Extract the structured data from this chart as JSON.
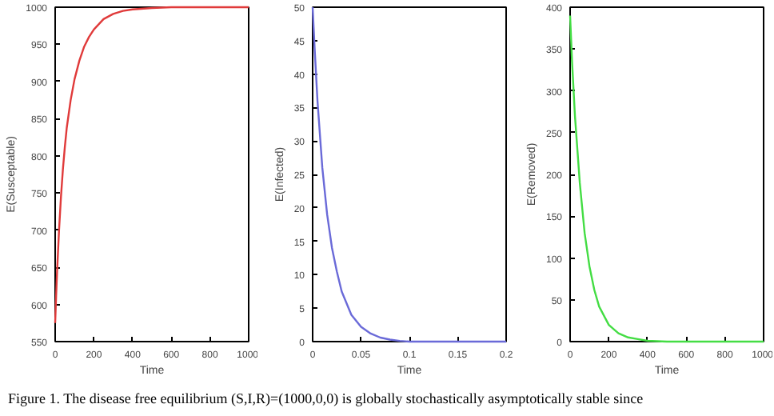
{
  "chart_data": [
    {
      "type": "line",
      "xlabel": "Time",
      "ylabel": "E(Susceptable)",
      "x": [
        0,
        5,
        10,
        20,
        30,
        40,
        50,
        60,
        80,
        100,
        125,
        150,
        175,
        200,
        250,
        300,
        350,
        400,
        500,
        600,
        800,
        1000
      ],
      "series": [
        {
          "color": "#e03a3a",
          "values": [
            575,
            612,
            645,
            700,
            745,
            782,
            812,
            838,
            875,
            903,
            928,
            947,
            960,
            970,
            984,
            991,
            995,
            997,
            999,
            1000,
            1000,
            1000
          ]
        }
      ],
      "xlim": [
        0,
        1000
      ],
      "xticks": [
        0,
        200,
        400,
        600,
        800,
        1000
      ],
      "ylim": [
        550,
        1000
      ],
      "yticks": [
        550,
        600,
        650,
        700,
        750,
        800,
        850,
        900,
        950,
        1000
      ],
      "grid": false,
      "annotations": [
        "Figure 1. The disease free equilibrium (S,I,R)=(1000,0,0) is globally stochastically asymptotically stable since"
      ]
    },
    {
      "type": "line",
      "xlabel": "Time",
      "ylabel": "E(Infected)",
      "x": [
        0,
        0.002,
        0.005,
        0.01,
        0.015,
        0.02,
        0.025,
        0.03,
        0.04,
        0.05,
        0.06,
        0.07,
        0.08,
        0.09,
        0.1,
        0.12,
        0.15,
        0.2
      ],
      "series": [
        {
          "color": "#6a6ad8",
          "values": [
            50,
            44,
            36,
            26,
            19,
            14,
            10.5,
            7.5,
            4,
            2.2,
            1.2,
            0.6,
            0.3,
            0.1,
            0,
            0,
            0,
            0
          ]
        }
      ],
      "xlim": [
        0,
        0.2
      ],
      "xticks": [
        0,
        0.05,
        0.1,
        0.15,
        0.2
      ],
      "ylim": [
        0,
        50
      ],
      "yticks": [
        0,
        5,
        10,
        15,
        20,
        25,
        30,
        35,
        40,
        45,
        50
      ],
      "grid": false
    },
    {
      "type": "line",
      "xlabel": "Time",
      "ylabel": "E(Removed)",
      "x": [
        0,
        10,
        25,
        50,
        75,
        100,
        125,
        150,
        200,
        250,
        300,
        350,
        400,
        500,
        600,
        800,
        1000
      ],
      "series": [
        {
          "color": "#44dd44",
          "values": [
            390,
            335,
            270,
            190,
            130,
            90,
            62,
            42,
            20,
            10,
            5,
            3,
            1,
            0,
            0,
            0,
            0
          ]
        }
      ],
      "xlim": [
        0,
        1000
      ],
      "xticks": [
        0,
        200,
        400,
        600,
        800,
        1000
      ],
      "ylim": [
        0,
        400
      ],
      "yticks": [
        0,
        50,
        100,
        150,
        200,
        250,
        300,
        350,
        400
      ],
      "grid": false
    }
  ]
}
